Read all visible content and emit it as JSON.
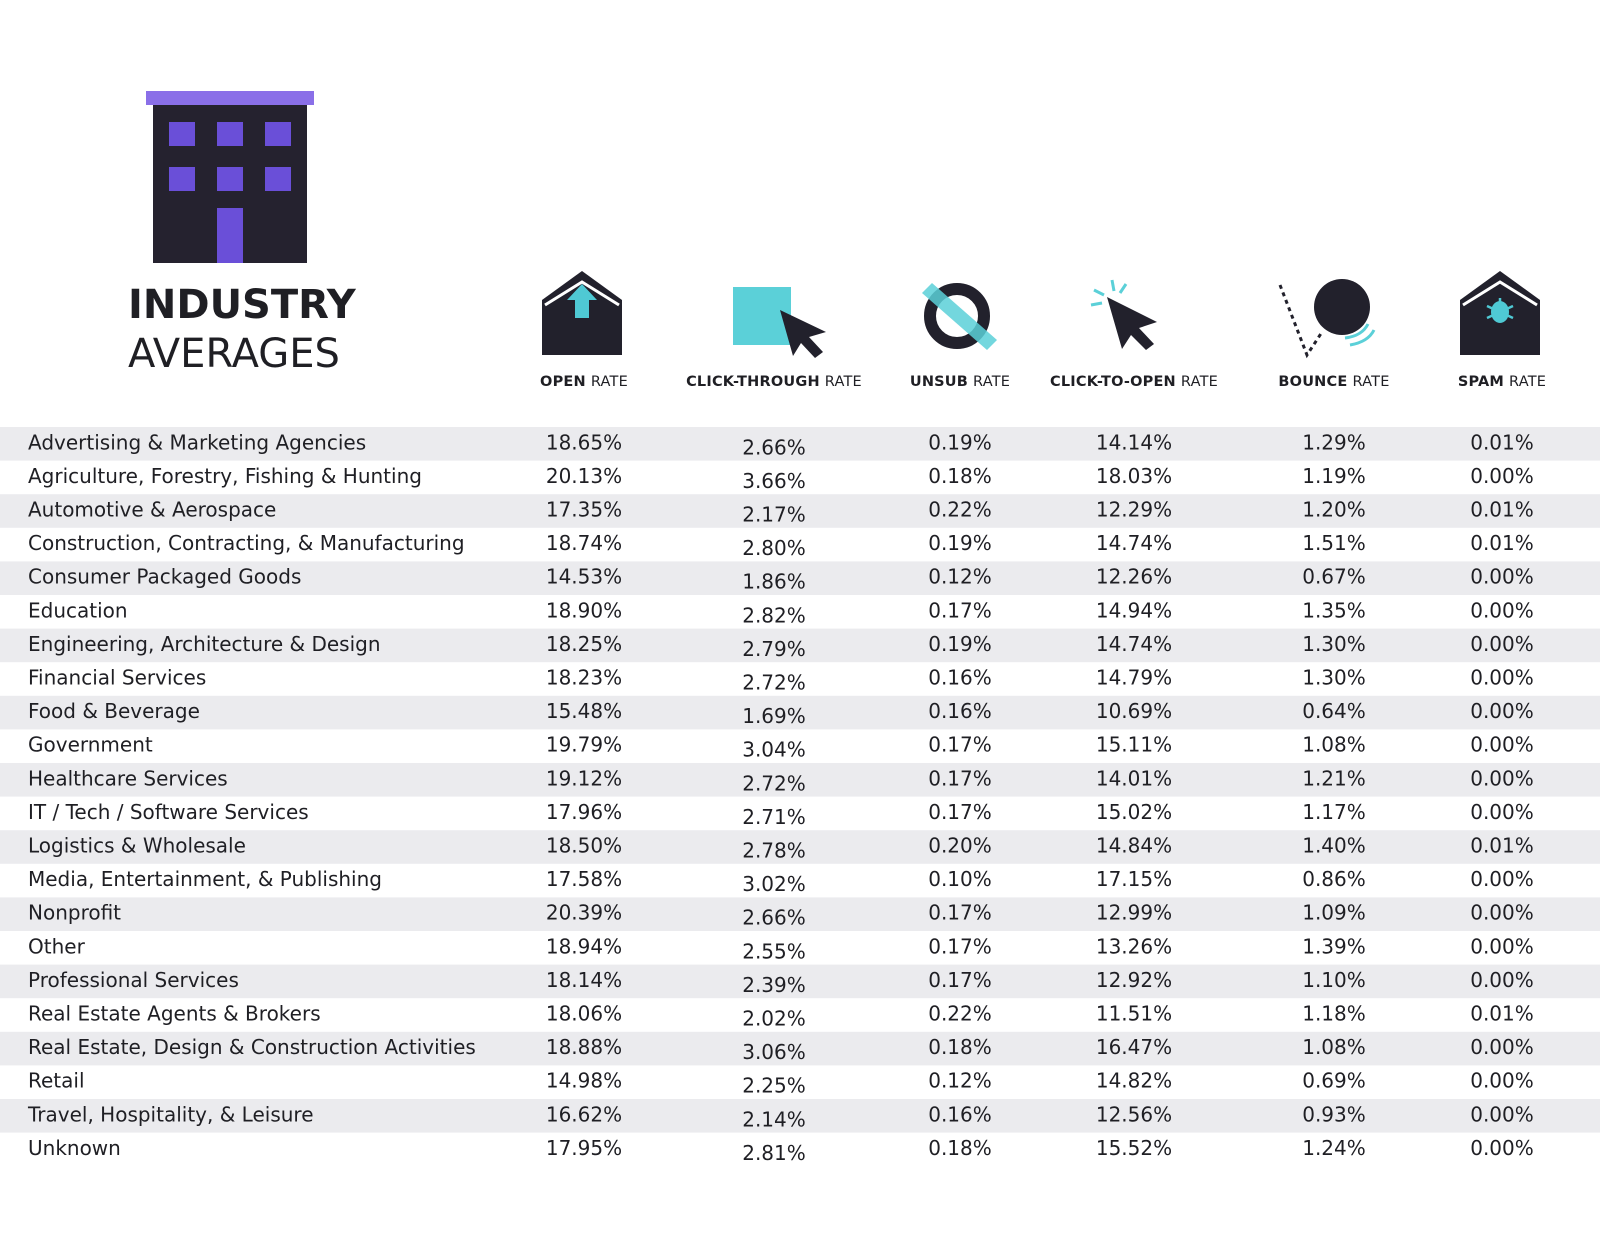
{
  "header": {
    "title_bold": "INDUSTRY",
    "title_light": "AVERAGES"
  },
  "columns": [
    {
      "bold": "OPEN",
      "light": "RATE"
    },
    {
      "bold": "CLICK-THROUGH",
      "light": "RATE"
    },
    {
      "bold": "UNSUB",
      "light": "RATE"
    },
    {
      "bold": "CLICK-TO-OPEN",
      "light": "RATE"
    },
    {
      "bold": "BOUNCE",
      "light": "RATE"
    },
    {
      "bold": "SPAM",
      "light": "RATE"
    }
  ],
  "table": {
    "rows": [
      [
        "Advertising & Marketing Agencies",
        "18.65%",
        "2.66%",
        "0.19%",
        "14.14%",
        "1.29%",
        "0.01%"
      ],
      [
        "Agriculture, Forestry, Fishing & Hunting",
        "20.13%",
        "3.66%",
        "0.18%",
        "18.03%",
        "1.19%",
        "0.00%"
      ],
      [
        "Automotive & Aerospace",
        "17.35%",
        "2.17%",
        "0.22%",
        "12.29%",
        "1.20%",
        "0.01%"
      ],
      [
        "Construction, Contracting, & Manufacturing",
        "18.74%",
        "2.80%",
        "0.19%",
        "14.74%",
        "1.51%",
        "0.01%"
      ],
      [
        "Consumer Packaged Goods",
        "14.53%",
        "1.86%",
        "0.12%",
        "12.26%",
        "0.67%",
        "0.00%"
      ],
      [
        "Education",
        "18.90%",
        "2.82%",
        "0.17%",
        "14.94%",
        "1.35%",
        "0.00%"
      ],
      [
        "Engineering, Architecture & Design",
        "18.25%",
        "2.79%",
        "0.19%",
        "14.74%",
        "1.30%",
        "0.00%"
      ],
      [
        "Financial Services",
        "18.23%",
        "2.72%",
        "0.16%",
        "14.79%",
        "1.30%",
        "0.00%"
      ],
      [
        "Food & Beverage",
        "15.48%",
        "1.69%",
        "0.16%",
        "10.69%",
        "0.64%",
        "0.00%"
      ],
      [
        "Government",
        "19.79%",
        "3.04%",
        "0.17%",
        "15.11%",
        "1.08%",
        "0.00%"
      ],
      [
        "Healthcare Services",
        "19.12%",
        "2.72%",
        "0.17%",
        "14.01%",
        "1.21%",
        "0.00%"
      ],
      [
        "IT / Tech / Software Services",
        "17.96%",
        "2.71%",
        "0.17%",
        "15.02%",
        "1.17%",
        "0.00%"
      ],
      [
        "Logistics & Wholesale",
        "18.50%",
        "2.78%",
        "0.20%",
        "14.84%",
        "1.40%",
        "0.01%"
      ],
      [
        "Media, Entertainment, & Publishing",
        "17.58%",
        "3.02%",
        "0.10%",
        "17.15%",
        "0.86%",
        "0.00%"
      ],
      [
        "Nonprofit",
        "20.39%",
        "2.66%",
        "0.17%",
        "12.99%",
        "1.09%",
        "0.00%"
      ],
      [
        "Other",
        "18.94%",
        "2.55%",
        "0.17%",
        "13.26%",
        "1.39%",
        "0.00%"
      ],
      [
        "Professional Services",
        "18.14%",
        "2.39%",
        "0.17%",
        "12.92%",
        "1.10%",
        "0.00%"
      ],
      [
        "Real Estate Agents & Brokers",
        "18.06%",
        "2.02%",
        "0.22%",
        "11.51%",
        "1.18%",
        "0.01%"
      ],
      [
        "Real Estate, Design & Construction Activities",
        "18.88%",
        "3.06%",
        "0.18%",
        "16.47%",
        "1.08%",
        "0.00%"
      ],
      [
        "Retail",
        "14.98%",
        "2.25%",
        "0.12%",
        "14.82%",
        "0.69%",
        "0.00%"
      ],
      [
        "Travel, Hospitality, & Leisure",
        "16.62%",
        "2.14%",
        "0.16%",
        "12.56%",
        "0.93%",
        "0.00%"
      ],
      [
        "Unknown",
        "17.95%",
        "2.81%",
        "0.18%",
        "15.52%",
        "1.24%",
        "0.00%"
      ]
    ]
  }
}
